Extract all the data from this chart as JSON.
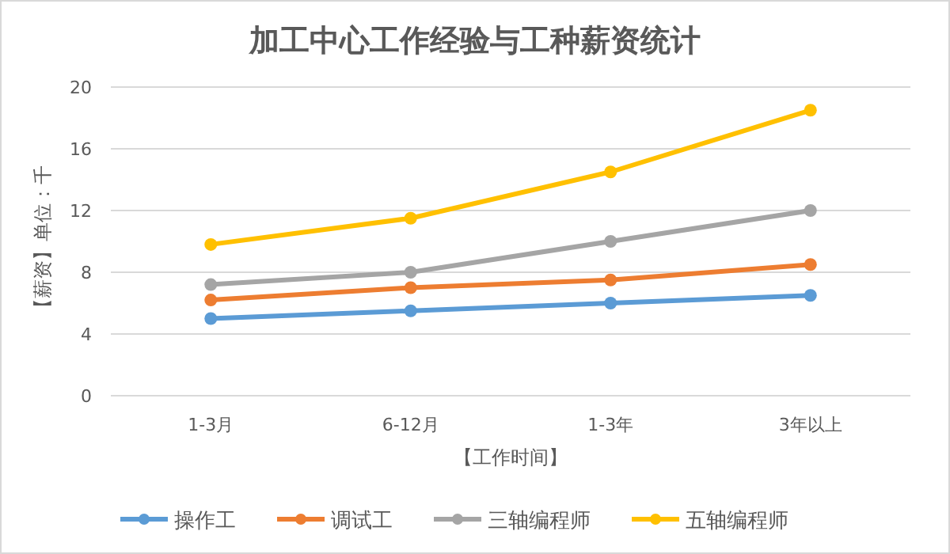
{
  "chart_data": {
    "type": "line",
    "title": "加工中心工作经验与工种薪资统计",
    "xlabel": "【工作时间】",
    "ylabel": "【薪资】单位：千",
    "categories": [
      "1-3月",
      "6-12月",
      "1-3年",
      "3年以上"
    ],
    "series": [
      {
        "name": "操作工",
        "color": "#5b9bd5",
        "values": [
          5,
          5.5,
          6,
          6.5
        ]
      },
      {
        "name": "调试工",
        "color": "#ed7d31",
        "values": [
          6.2,
          7,
          7.5,
          8.5
        ]
      },
      {
        "name": "三轴编程师",
        "color": "#a5a5a5",
        "values": [
          7.2,
          8,
          10,
          12
        ]
      },
      {
        "name": "五轴编程师",
        "color": "#ffc000",
        "values": [
          9.8,
          11.5,
          14.5,
          18.5
        ]
      }
    ],
    "ylim": [
      0,
      20
    ],
    "yticks": [
      0,
      4,
      8,
      12,
      16,
      20
    ],
    "grid": "y",
    "legend": "bottom",
    "marker": "circle",
    "line_style": "solid"
  }
}
